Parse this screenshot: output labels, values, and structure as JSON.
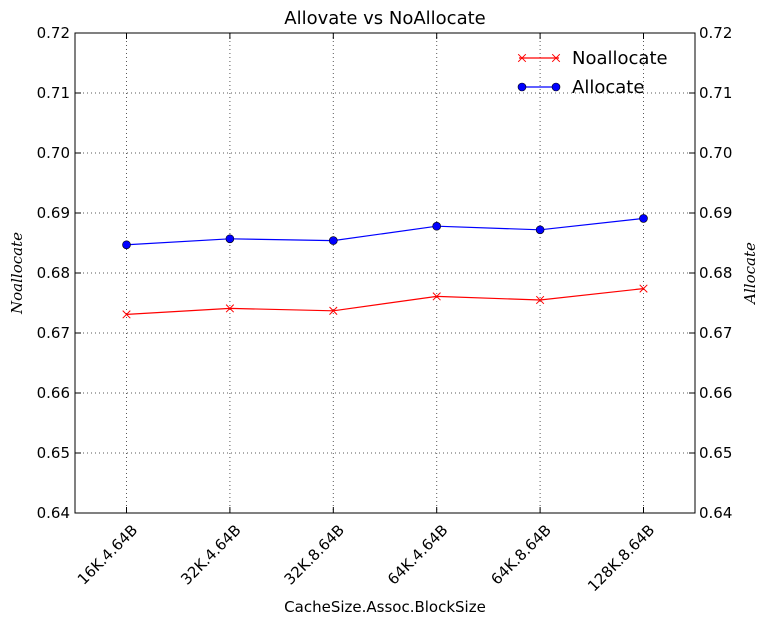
{
  "chart_data": {
    "type": "line",
    "title": "Allovate vs NoAllocate",
    "xlabel": "CacheSize.Assoc.BlockSize",
    "ylabel_left": "Noallocate",
    "ylabel_right": "Allocate",
    "categories": [
      "16K.4.64B",
      "32K.4.64B",
      "32K.8.64B",
      "64K.4.64B",
      "64K.8.64B",
      "128K.8.64B"
    ],
    "ylim": [
      0.64,
      0.72
    ],
    "yticks": [
      "0.64",
      "0.65",
      "0.66",
      "0.67",
      "0.68",
      "0.69",
      "0.70",
      "0.71",
      "0.72"
    ],
    "grid": true,
    "legend_position": "top-right",
    "series": [
      {
        "name": "Noallocate",
        "color": "#ff0000",
        "marker": "x",
        "values": [
          0.6731,
          0.6741,
          0.6737,
          0.6761,
          0.6755,
          0.6774
        ]
      },
      {
        "name": "Allocate",
        "color": "#0000ff",
        "marker": "circle",
        "values": [
          0.6847,
          0.6857,
          0.6854,
          0.6878,
          0.6872,
          0.6891
        ]
      }
    ]
  }
}
